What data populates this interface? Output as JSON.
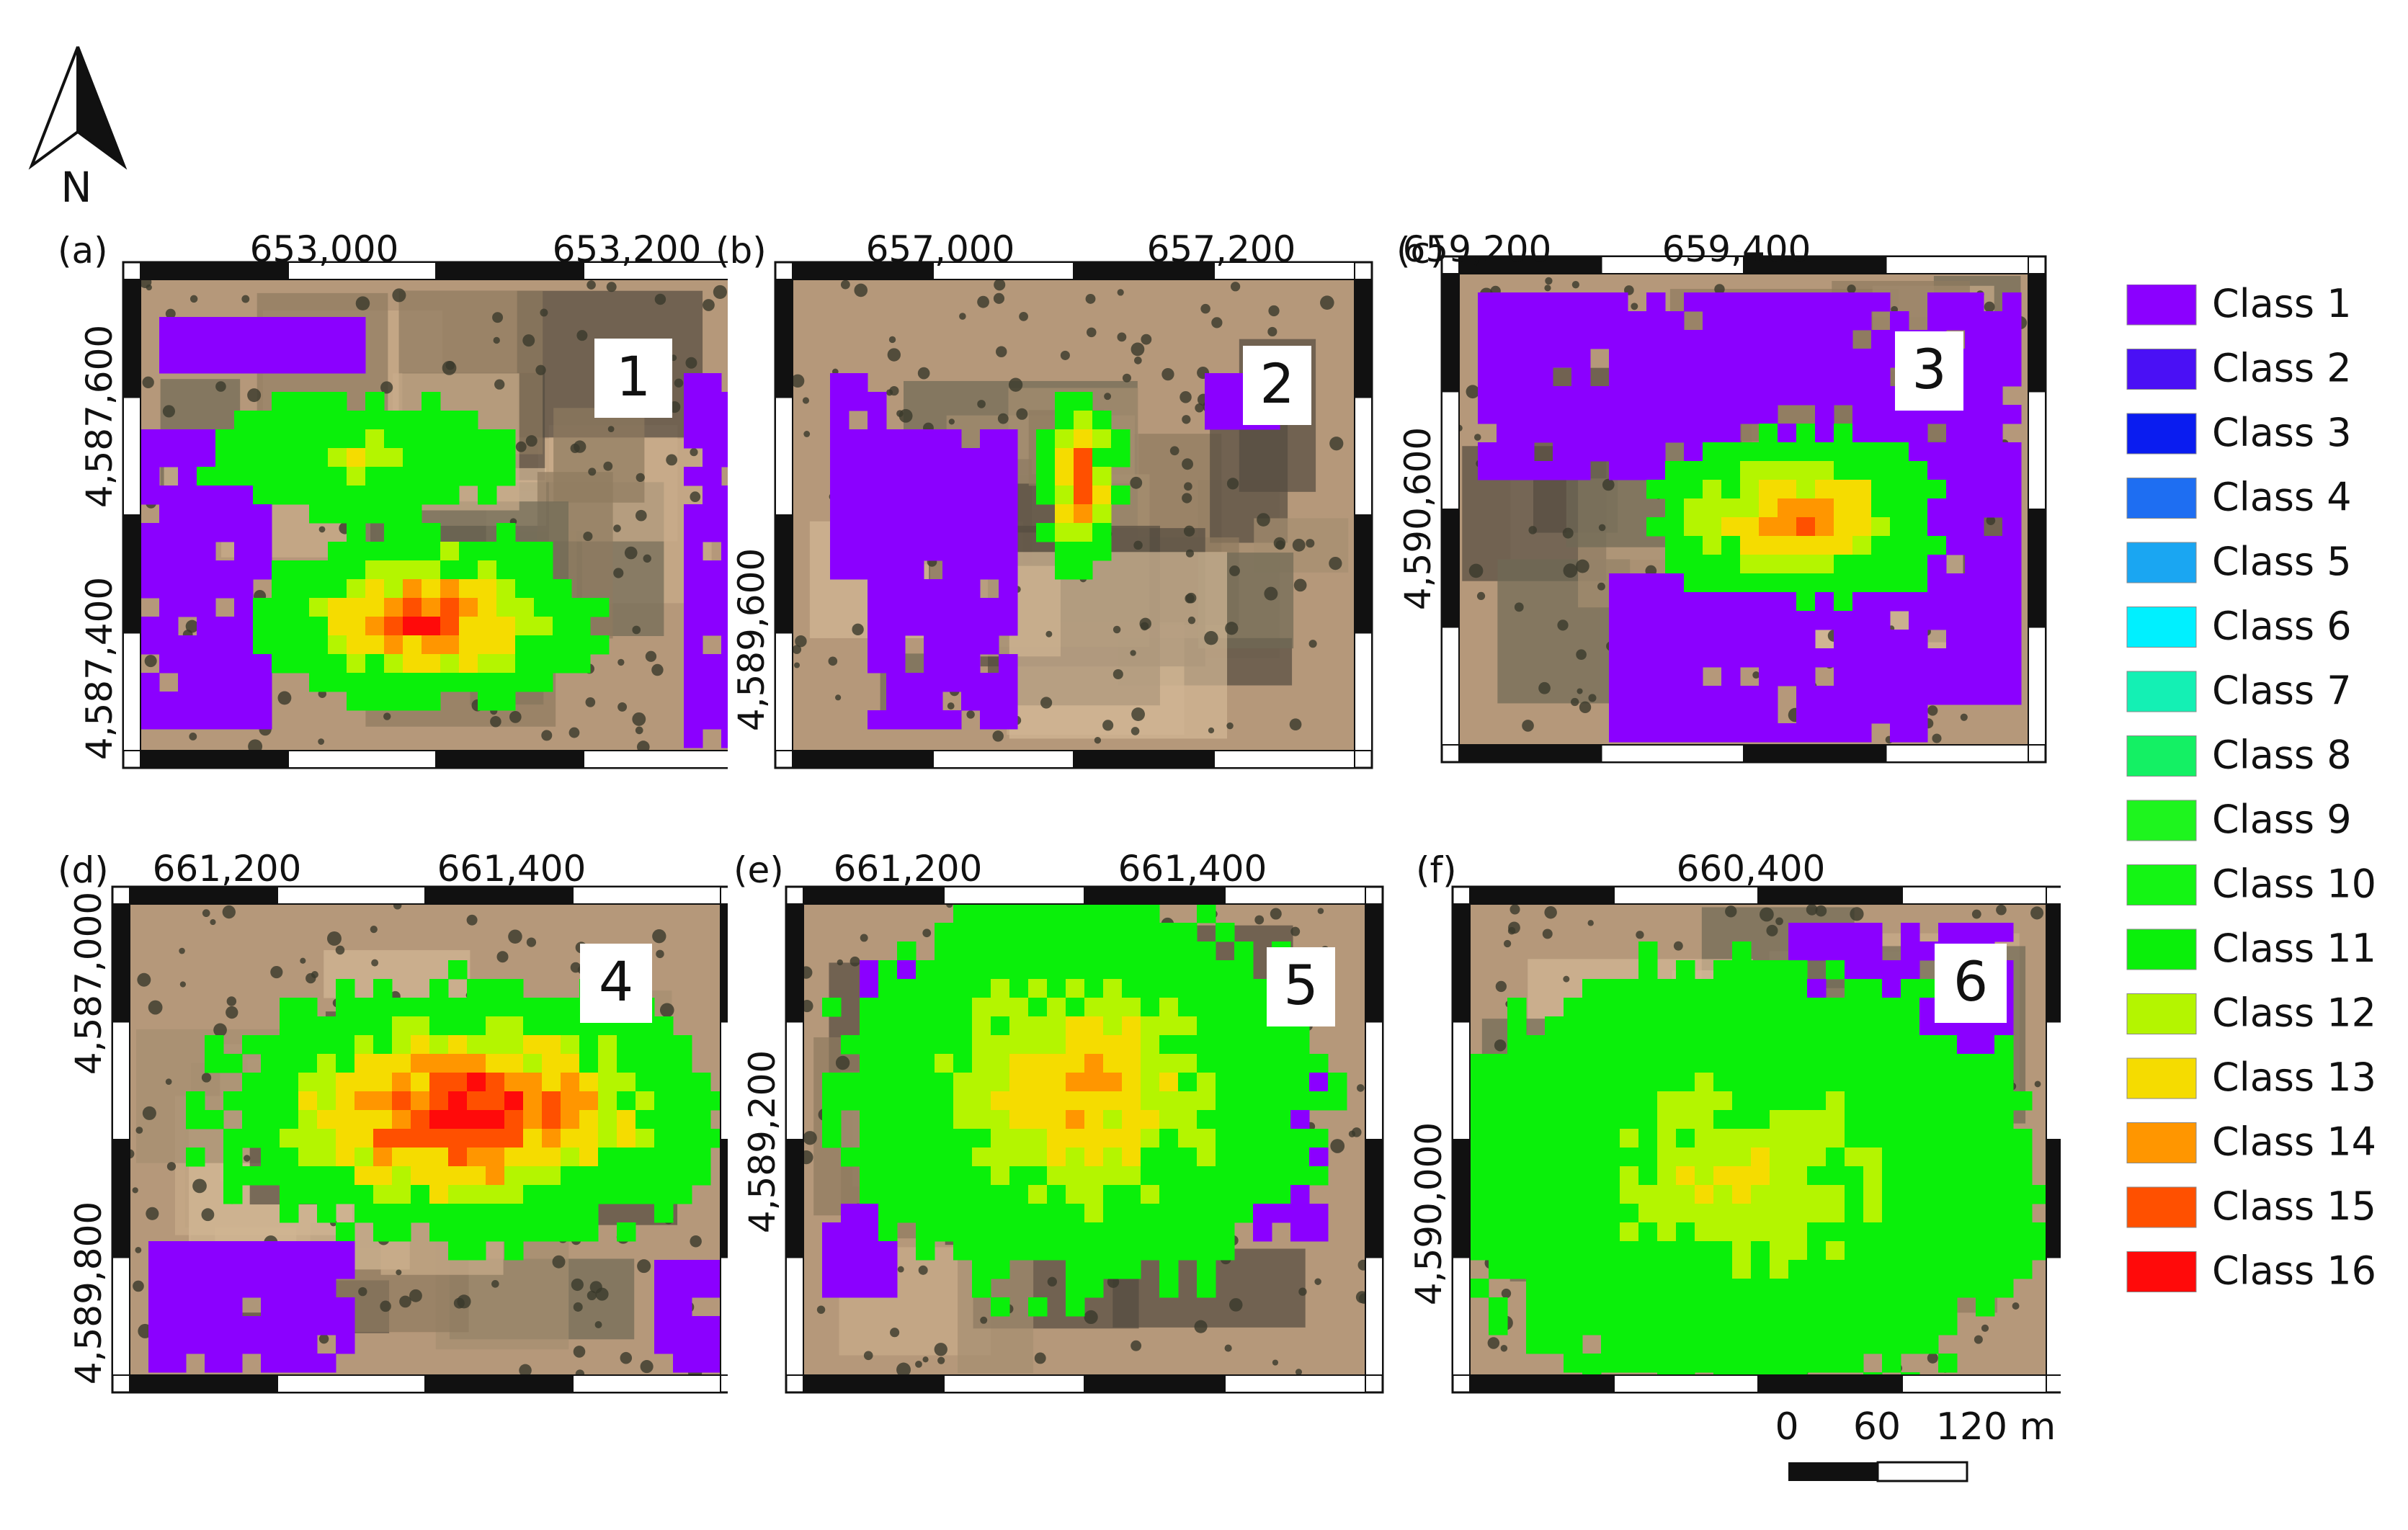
{
  "north_arrow": {
    "label": "N"
  },
  "scale_bar": {
    "labels": [
      "0",
      "60",
      "120 m"
    ]
  },
  "legend": {
    "items": [
      {
        "label": "Class 1",
        "color": "#8b00ff"
      },
      {
        "label": "Class 2",
        "color": "#4a10f5"
      },
      {
        "label": "Class 3",
        "color": "#0a1cf0"
      },
      {
        "label": "Class 4",
        "color": "#1e6ef2"
      },
      {
        "label": "Class 5",
        "color": "#1aa6f2"
      },
      {
        "label": "Class 6",
        "color": "#00f0ff"
      },
      {
        "label": "Class 7",
        "color": "#14f0b4"
      },
      {
        "label": "Class 8",
        "color": "#14f064"
      },
      {
        "label": "Class 9",
        "color": "#1ef51e"
      },
      {
        "label": "Class 10",
        "color": "#14f514"
      },
      {
        "label": "Class 11",
        "color": "#0af00a"
      },
      {
        "label": "Class 12",
        "color": "#b4f500"
      },
      {
        "label": "Class 13",
        "color": "#f5dc00"
      },
      {
        "label": "Class 14",
        "color": "#ff9600"
      },
      {
        "label": "Class 15",
        "color": "#ff5000"
      },
      {
        "label": "Class 16",
        "color": "#ff0a0a"
      }
    ]
  },
  "panels": [
    {
      "letter": "(a)",
      "number": "1",
      "x_ticks": [
        "653,000",
        "653,200"
      ],
      "y_ticks": [
        "4,587,600",
        "4,587,400"
      ]
    },
    {
      "letter": "(b)",
      "number": "2",
      "x_ticks": [
        "657,000",
        "657,200"
      ],
      "y_ticks": [
        "4,589,600"
      ]
    },
    {
      "letter": "(c)",
      "number": "3",
      "x_ticks": [
        "659,200",
        "659,400"
      ],
      "y_ticks": [
        "4,590,600"
      ]
    },
    {
      "letter": "(d)",
      "number": "4",
      "x_ticks": [
        "661,200",
        "661,400"
      ],
      "y_ticks": [
        "4,587,000",
        "4,589,800"
      ]
    },
    {
      "letter": "(e)",
      "number": "5",
      "x_ticks": [
        "661,200",
        "661,400"
      ],
      "y_ticks": [
        "4,589,200"
      ]
    },
    {
      "letter": "(f)",
      "number": "6",
      "x_ticks": [
        "660,400"
      ],
      "y_ticks": [
        "4,590,000"
      ]
    }
  ]
}
